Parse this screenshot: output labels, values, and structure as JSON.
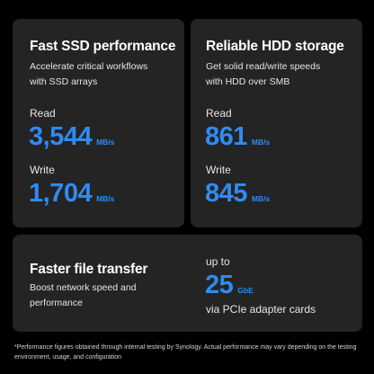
{
  "theme": {
    "background": "#000000",
    "card": "#242424",
    "accent": "#2f8bf2",
    "text": "#ffffff"
  },
  "ssd": {
    "title": "Fast SSD performance",
    "description": "Accelerate critical workflows\nwith SSD arrays",
    "read_label": "Read",
    "read_value": "3,544",
    "read_unit": "MB/s",
    "write_label": "Write",
    "write_value": "1,704",
    "write_unit": "MB/s"
  },
  "hdd": {
    "title": "Reliable HDD storage",
    "description": "Get solid read/write speeds\nwith HDD over SMB",
    "read_label": "Read",
    "read_value": "861",
    "read_unit": "MB/s",
    "write_label": "Write",
    "write_value": "845",
    "write_unit": "MB/s"
  },
  "network": {
    "title": "Faster file transfer",
    "description": "Boost network speed and\nperformance",
    "prefix": "up to",
    "value": "25",
    "unit": "GbE",
    "suffix": "via PCIe adapter cards"
  },
  "footnote": "*Performance figures obtained through internal testing by Synology. Actual performance may vary depending on the testing environment, usage, and configuration"
}
